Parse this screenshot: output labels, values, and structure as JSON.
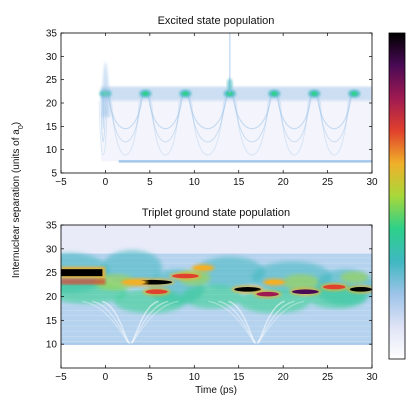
{
  "figure": {
    "ylabel_main": "Internuclear separation (units of a",
    "ylabel_sub": "0",
    "ylabel_tail": ")",
    "xlabel": "Time (ps)"
  },
  "colormap": [
    "#ffffff",
    "#dfe3f6",
    "#9cc3e8",
    "#3fb8c0",
    "#2dd08a",
    "#a8d83a",
    "#f0b02a",
    "#e0402c",
    "#a01a52",
    "#4a0a55",
    "#000000"
  ],
  "chart_data": [
    {
      "type": "heatmap",
      "title": "Excited state population",
      "x_ticks": [
        -5,
        0,
        5,
        10,
        15,
        20,
        25,
        30
      ],
      "y_ticks": [
        5,
        10,
        15,
        20,
        25,
        30,
        35
      ],
      "xlim": [
        -5,
        30
      ],
      "ylim": [
        5,
        35
      ],
      "grid": false,
      "features": {
        "onset_time_ps": -0.5,
        "band_center_units_a0": 22,
        "inner_turning_point_units_a0": 7.5,
        "bright_spot_times_ps": [
          0,
          4.5,
          9,
          14,
          19,
          23.5,
          28
        ],
        "spike_time_ps": 14,
        "spike_top_units_a0": 35
      }
    },
    {
      "type": "heatmap",
      "title": "Triplet ground state population",
      "x_ticks": [
        -5,
        0,
        5,
        10,
        15,
        20,
        25,
        30
      ],
      "y_ticks": [
        10,
        15,
        20,
        25,
        30,
        35
      ],
      "xlim": [
        -5,
        30
      ],
      "ylim": [
        5,
        35
      ],
      "grid": false,
      "features": {
        "initial_band_units_a0": 25,
        "initial_band_end_ps": 0,
        "lower_bound_units_a0": 10,
        "dip_times_ps": [
          2.8,
          17
        ]
      }
    }
  ]
}
